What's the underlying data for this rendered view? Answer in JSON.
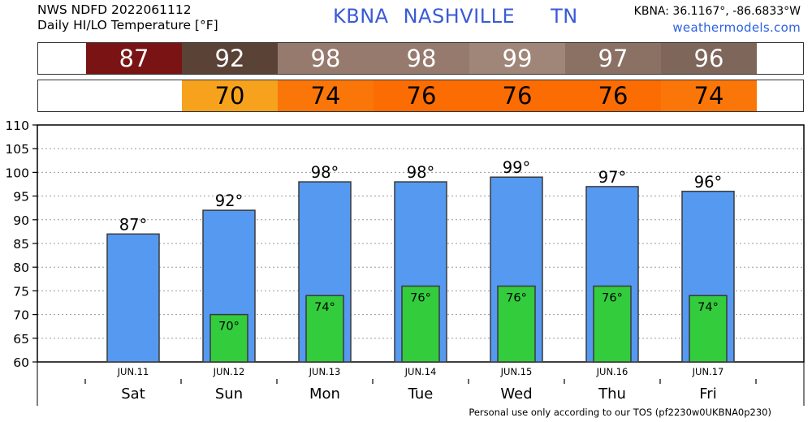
{
  "header": {
    "line1": "NWS NDFD 2022061112",
    "line2": "Daily HI/LO Temperature [°F]",
    "station_code": "KBNA",
    "station_name": "NASHVILLE",
    "state": "TN",
    "coords": "KBNA: 36.1167°, -86.6833°W",
    "site": "weathermodels.com"
  },
  "footer": "Personal use only according to our TOS (pf2230w0UKBNA0p230)",
  "hi_row": [
    {
      "value": "87",
      "color": "#7a1414",
      "text_color": "#ffffff"
    },
    {
      "value": "92",
      "color": "#5b4236",
      "text_color": "#ffffff"
    },
    {
      "value": "98",
      "color": "#957a6d",
      "text_color": "#ffffff"
    },
    {
      "value": "98",
      "color": "#957a6d",
      "text_color": "#ffffff"
    },
    {
      "value": "99",
      "color": "#a08679",
      "text_color": "#ffffff"
    },
    {
      "value": "97",
      "color": "#8b7064",
      "text_color": "#ffffff"
    },
    {
      "value": "96",
      "color": "#7f665b",
      "text_color": "#ffffff"
    }
  ],
  "lo_row": [
    {
      "value": "",
      "color": "#ffffff",
      "text_color": "#000000"
    },
    {
      "value": "70",
      "color": "#f7a21c",
      "text_color": "#000000"
    },
    {
      "value": "74",
      "color": "#fb7609",
      "text_color": "#000000"
    },
    {
      "value": "76",
      "color": "#fb6c02",
      "text_color": "#000000"
    },
    {
      "value": "76",
      "color": "#fb6c02",
      "text_color": "#000000"
    },
    {
      "value": "76",
      "color": "#fb6c02",
      "text_color": "#000000"
    },
    {
      "value": "74",
      "color": "#fb7609",
      "text_color": "#000000"
    }
  ],
  "chart_data": {
    "type": "bar",
    "categories": [
      "JUN.11",
      "JUN.12",
      "JUN.13",
      "JUN.14",
      "JUN.15",
      "JUN.16",
      "JUN.17"
    ],
    "days": [
      "Sat",
      "Sun",
      "Mon",
      "Tue",
      "Wed",
      "Thu",
      "Fri"
    ],
    "series": [
      {
        "values": [
          87,
          92,
          98,
          98,
          99,
          97,
          96
        ],
        "color": "#5599f1"
      },
      {
        "values": [
          null,
          70,
          74,
          76,
          76,
          76,
          74
        ],
        "color": "#33cc3d"
      }
    ],
    "hi_labels": [
      "87°",
      "92°",
      "98°",
      "98°",
      "99°",
      "97°",
      "96°"
    ],
    "lo_labels": [
      "",
      "70°",
      "74°",
      "76°",
      "76°",
      "76°",
      "74°"
    ],
    "yticks": [
      "60",
      "65",
      "70",
      "75",
      "80",
      "85",
      "90",
      "95",
      "100",
      "105",
      "110"
    ],
    "ylim": [
      60,
      110
    ],
    "grid": true
  }
}
